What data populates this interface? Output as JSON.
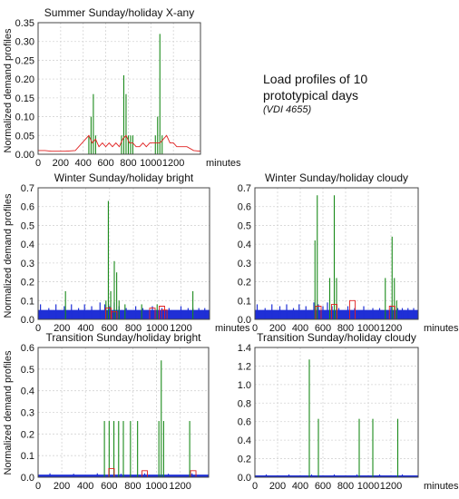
{
  "annotation": {
    "line1": "Load profiles of 10",
    "line2": "prototypical days",
    "citation": "(VDI 4655)"
  },
  "colors": {
    "green": "#1a8a1a",
    "red": "#e02020",
    "blue": "#1f2fd6"
  },
  "chart_data": [
    {
      "type": "line",
      "title": "Summer Sunday/holiday X-any",
      "xlabel": "minutes",
      "ylabel": "Normalized demand profiles",
      "xlim": [
        0,
        1440
      ],
      "ylim": [
        0,
        0.35
      ],
      "xticks": [
        "0",
        "200",
        "400",
        "600",
        "800",
        "1000",
        "1200"
      ],
      "yticks": [
        "0.00",
        "0.05",
        "0.10",
        "0.15",
        "0.20",
        "0.25",
        "0.30",
        "0.35"
      ],
      "series": [
        {
          "color": "green",
          "style": "spikes",
          "base": 0,
          "x": [
            450,
            470,
            490,
            510,
            740,
            760,
            780,
            800,
            820,
            840,
            1040,
            1060,
            1080,
            1100
          ],
          "y": [
            0.05,
            0.1,
            0.16,
            0.05,
            0.05,
            0.21,
            0.16,
            0.05,
            0.05,
            0.05,
            0.05,
            0.1,
            0.32,
            0.05
          ]
        },
        {
          "color": "red",
          "style": "line",
          "x": [
            0,
            60,
            120,
            240,
            330,
            390,
            420,
            450,
            480,
            510,
            540,
            570,
            600,
            630,
            660,
            690,
            720,
            750,
            780,
            810,
            840,
            870,
            900,
            930,
            960,
            990,
            1020,
            1050,
            1080,
            1110,
            1140,
            1170,
            1200,
            1230,
            1260,
            1320,
            1380,
            1440
          ],
          "y": [
            0.01,
            0.01,
            0.008,
            0.008,
            0.01,
            0.03,
            0.04,
            0.05,
            0.03,
            0.04,
            0.02,
            0.03,
            0.02,
            0.03,
            0.02,
            0.03,
            0.02,
            0.04,
            0.05,
            0.03,
            0.03,
            0.02,
            0.02,
            0.03,
            0.02,
            0.03,
            0.03,
            0.03,
            0.03,
            0.04,
            0.05,
            0.03,
            0.03,
            0.02,
            0.02,
            0.02,
            0.01,
            0.008
          ]
        }
      ]
    },
    {
      "type": "line",
      "title": "Winter Sunday/holiday bright",
      "xlabel": "minutes",
      "ylabel": "Normalized demand profiles",
      "xlim": [
        0,
        1440
      ],
      "ylim": [
        0,
        0.7
      ],
      "xticks": [
        "0",
        "200",
        "400",
        "600",
        "800",
        "1000",
        "1200"
      ],
      "yticks": [
        "0.0",
        "0.1",
        "0.2",
        "0.3",
        "0.4",
        "0.5",
        "0.6",
        "0.7"
      ],
      "series": [
        {
          "color": "blue",
          "style": "band",
          "base": 0.05,
          "x": [
            20,
            90,
            150,
            220,
            280,
            340,
            390,
            450,
            520,
            560,
            600,
            640,
            680,
            740,
            820,
            880,
            960,
            1040,
            1100,
            1200,
            1260,
            1300,
            1350,
            1400
          ],
          "y": [
            0.08,
            0.06,
            0.08,
            0.07,
            0.08,
            0.06,
            0.08,
            0.07,
            0.09,
            0.08,
            0.07,
            0.09,
            0.07,
            0.06,
            0.07,
            0.06,
            0.07,
            0.06,
            0.06,
            0.07,
            0.06,
            0.06,
            0.06,
            0.06
          ]
        },
        {
          "color": "green",
          "style": "spikes",
          "base": 0,
          "x": [
            230,
            570,
            590,
            610,
            640,
            660,
            680,
            730,
            870,
            1000,
            1300
          ],
          "y": [
            0.15,
            0.1,
            0.63,
            0.15,
            0.31,
            0.25,
            0.1,
            0.08,
            0.08,
            0.08,
            0.15
          ]
        },
        {
          "color": "red",
          "style": "bumps",
          "base": 0,
          "x": [
            590,
            640,
            960,
            1040,
            1060
          ],
          "y": [
            0.06,
            0.04,
            0.06,
            0.07,
            0.05
          ]
        }
      ]
    },
    {
      "type": "line",
      "title": "Winter Sunday/holiday cloudy",
      "xlabel": "minutes",
      "ylabel": "",
      "xlim": [
        0,
        1440
      ],
      "ylim": [
        0,
        0.7
      ],
      "xticks": [
        "0",
        "200",
        "400",
        "600",
        "800",
        "1000",
        "1200"
      ],
      "yticks": [
        "0.0",
        "0.1",
        "0.2",
        "0.3",
        "0.4",
        "0.5",
        "0.6",
        "0.7"
      ],
      "series": [
        {
          "color": "blue",
          "style": "band",
          "base": 0.05,
          "x": [
            20,
            90,
            150,
            220,
            280,
            340,
            390,
            450,
            520,
            560,
            600,
            640,
            680,
            740,
            820,
            880,
            960,
            1040,
            1100,
            1200,
            1260,
            1300,
            1350,
            1400
          ],
          "y": [
            0.08,
            0.06,
            0.08,
            0.07,
            0.08,
            0.06,
            0.08,
            0.07,
            0.09,
            0.08,
            0.07,
            0.09,
            0.07,
            0.06,
            0.07,
            0.06,
            0.07,
            0.06,
            0.06,
            0.07,
            0.06,
            0.06,
            0.06,
            0.06
          ]
        },
        {
          "color": "green",
          "style": "spikes",
          "base": 0,
          "x": [
            530,
            550,
            660,
            700,
            720,
            1150,
            1210,
            1230,
            1250
          ],
          "y": [
            0.42,
            0.66,
            0.22,
            0.66,
            0.22,
            0.22,
            0.44,
            0.22,
            0.1
          ]
        },
        {
          "color": "red",
          "style": "bumps",
          "base": 0,
          "x": [
            560,
            700,
            860,
            1210
          ],
          "y": [
            0.07,
            0.08,
            0.1,
            0.07
          ]
        }
      ]
    },
    {
      "type": "line",
      "title": "Transition Sunday/holiday bright",
      "xlabel": "",
      "ylabel": "Normalized demand profiles",
      "xlim": [
        0,
        1440
      ],
      "ylim": [
        0,
        0.6
      ],
      "xticks": [
        "0",
        "200",
        "400",
        "600",
        "800",
        "1000",
        "1200"
      ],
      "yticks": [
        "0.0",
        "0.1",
        "0.2",
        "0.3",
        "0.4",
        "0.5",
        "0.6"
      ],
      "series": [
        {
          "color": "blue",
          "style": "band",
          "base": 0.012,
          "x": [
            100,
            300,
            500,
            700,
            900,
            1100,
            1300
          ],
          "y": [
            0.018,
            0.016,
            0.018,
            0.016,
            0.018,
            0.016,
            0.018
          ]
        },
        {
          "color": "green",
          "style": "spikes",
          "base": 0,
          "x": [
            560,
            600,
            640,
            680,
            720,
            780,
            840,
            1020,
            1040,
            1060,
            1280
          ],
          "y": [
            0.26,
            0.26,
            0.26,
            0.26,
            0.26,
            0.26,
            0.26,
            0.26,
            0.54,
            0.26,
            0.26
          ]
        },
        {
          "color": "red",
          "style": "bumps",
          "base": 0,
          "x": [
            620,
            900,
            1310
          ],
          "y": [
            0.04,
            0.03,
            0.03
          ]
        }
      ]
    },
    {
      "type": "line",
      "title": "Transition Sunday/holiday cloudy",
      "xlabel": "minutes",
      "ylabel": "",
      "xlim": [
        0,
        1440
      ],
      "ylim": [
        0,
        1.4
      ],
      "xticks": [
        "0",
        "200",
        "400",
        "600",
        "800",
        "1000",
        "1200"
      ],
      "yticks": [
        "0.0",
        "0.2",
        "0.4",
        "0.6",
        "0.8",
        "1.0",
        "1.2",
        "1.4"
      ],
      "series": [
        {
          "color": "blue",
          "style": "band",
          "base": 0.02,
          "x": [
            100,
            300,
            500,
            700,
            900,
            1100,
            1300
          ],
          "y": [
            0.03,
            0.03,
            0.03,
            0.03,
            0.03,
            0.03,
            0.03
          ]
        },
        {
          "color": "green",
          "style": "spikes",
          "base": 0,
          "x": [
            480,
            560,
            920,
            1040,
            1260
          ],
          "y": [
            1.27,
            0.63,
            0.63,
            0.63,
            0.63
          ]
        }
      ]
    }
  ]
}
